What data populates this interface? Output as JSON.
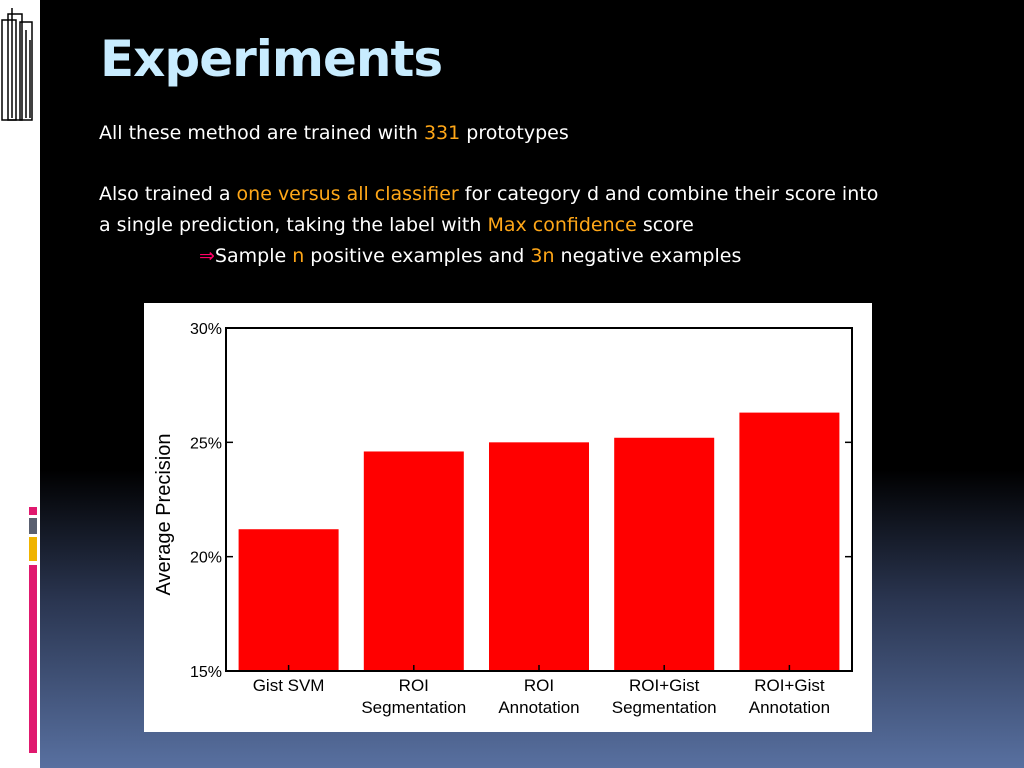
{
  "slide": {
    "title": "Experiments",
    "line1": {
      "a": "All these method are trained with ",
      "b": "331",
      "c": " prototypes"
    },
    "line2": {
      "a": "Also trained a ",
      "b": "one versus all classifier",
      "c": " for category d and combine their score into"
    },
    "line3": {
      "a": "a single prediction, taking the label with ",
      "b": "Max confidence",
      "c": " score"
    },
    "line4": {
      "arrow": "⇒",
      "a": "Sample ",
      "b": "n",
      "c": " positive examples and ",
      "d": "3n",
      "e": " negative examples"
    }
  },
  "colors": {
    "title": "#c8ecff",
    "highlight": "#ffa718",
    "bar": "#ff0000",
    "accent_pink": "#e0196e",
    "accent_gray": "#5a6070",
    "accent_yellow": "#f0b400"
  },
  "chart_data": {
    "type": "bar",
    "categories": [
      [
        "Gist SVM"
      ],
      [
        "ROI",
        "Segmentation"
      ],
      [
        "ROI",
        "Annotation"
      ],
      [
        "ROI+Gist",
        "Segmentation"
      ],
      [
        "ROI+Gist",
        "Annotation"
      ]
    ],
    "values": [
      21.2,
      24.6,
      25.0,
      25.2,
      26.3
    ],
    "ylabel": "Average Precision",
    "xlabel": "",
    "ylim": [
      15,
      30
    ],
    "yticks": [
      15,
      20,
      25,
      30
    ],
    "ytick_labels": [
      "15%",
      "20%",
      "25%",
      "30%"
    ],
    "grid": false
  }
}
